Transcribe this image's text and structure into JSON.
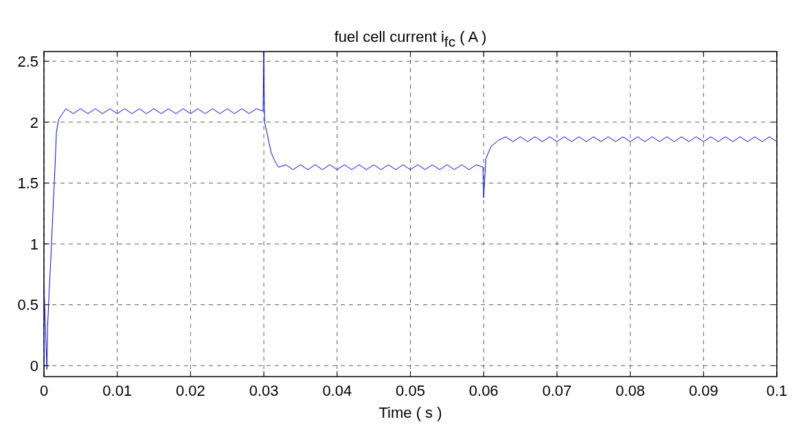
{
  "chart_data": {
    "type": "line",
    "title": "fuel cell current i$_{fc}$ ( A )",
    "xlabel": "Time ( s )",
    "xlim": [
      0,
      0.1
    ],
    "xticks": [
      0,
      0.01,
      0.02,
      0.03,
      0.04,
      0.05,
      0.06,
      0.07,
      0.08,
      0.09,
      0.1
    ],
    "ylim": [
      -0.09,
      2.58
    ],
    "yticks": [
      0,
      0.5,
      1,
      1.5,
      2,
      2.5
    ],
    "grid": true,
    "series": [
      {
        "color": "#0000ff",
        "x": [
          0,
          0.0001,
          0.0004,
          0.0005,
          0.0007,
          0.00094,
          0.0012,
          0.0015,
          0.0017,
          0.002,
          0.0024,
          0.003,
          0.004,
          0.005,
          0.006,
          0.007,
          0.008,
          0.009,
          0.01,
          0.011,
          0.012,
          0.013,
          0.014,
          0.015,
          0.016,
          0.017,
          0.018,
          0.019,
          0.02,
          0.021,
          0.022,
          0.023,
          0.024,
          0.025,
          0.026,
          0.027,
          0.028,
          0.029,
          0.0299,
          0.03,
          0.0301,
          0.0304,
          0.031,
          0.0315,
          0.032,
          0.033,
          0.034,
          0.035,
          0.036,
          0.037,
          0.038,
          0.039,
          0.04,
          0.041,
          0.042,
          0.043,
          0.044,
          0.045,
          0.046,
          0.047,
          0.048,
          0.049,
          0.05,
          0.051,
          0.052,
          0.053,
          0.054,
          0.055,
          0.056,
          0.057,
          0.058,
          0.059,
          0.0599,
          0.06,
          0.0603,
          0.061,
          0.062,
          0.063,
          0.064,
          0.065,
          0.066,
          0.067,
          0.068,
          0.069,
          0.07,
          0.071,
          0.072,
          0.073,
          0.074,
          0.075,
          0.076,
          0.077,
          0.078,
          0.079,
          0.08,
          0.081,
          0.082,
          0.083,
          0.084,
          0.085,
          0.086,
          0.087,
          0.088,
          0.089,
          0.09,
          0.091,
          0.092,
          0.093,
          0.094,
          0.095,
          0.096,
          0.097,
          0.098,
          0.099,
          0.1
        ],
        "values": [
          0.65,
          0.5,
          -0.03,
          0.32,
          0.6,
          0.88,
          1.23,
          1.62,
          1.92,
          2.02,
          2.06,
          2.11,
          2.07,
          2.11,
          2.07,
          2.11,
          2.07,
          2.11,
          2.07,
          2.11,
          2.07,
          2.11,
          2.07,
          2.11,
          2.07,
          2.11,
          2.07,
          2.11,
          2.07,
          2.11,
          2.07,
          2.11,
          2.07,
          2.11,
          2.07,
          2.11,
          2.07,
          2.11,
          2.09,
          2.58,
          2.0,
          1.92,
          1.75,
          1.68,
          1.63,
          1.65,
          1.61,
          1.65,
          1.61,
          1.65,
          1.61,
          1.65,
          1.61,
          1.65,
          1.61,
          1.65,
          1.61,
          1.65,
          1.61,
          1.65,
          1.61,
          1.65,
          1.61,
          1.65,
          1.61,
          1.65,
          1.61,
          1.65,
          1.61,
          1.65,
          1.61,
          1.65,
          1.63,
          1.38,
          1.7,
          1.8,
          1.85,
          1.88,
          1.84,
          1.88,
          1.84,
          1.88,
          1.84,
          1.88,
          1.84,
          1.88,
          1.84,
          1.88,
          1.84,
          1.88,
          1.84,
          1.88,
          1.84,
          1.88,
          1.84,
          1.88,
          1.84,
          1.88,
          1.84,
          1.88,
          1.84,
          1.88,
          1.84,
          1.88,
          1.84,
          1.88,
          1.84,
          1.88,
          1.84,
          1.88,
          1.84,
          1.88,
          1.84,
          1.88,
          1.84
        ]
      }
    ]
  }
}
